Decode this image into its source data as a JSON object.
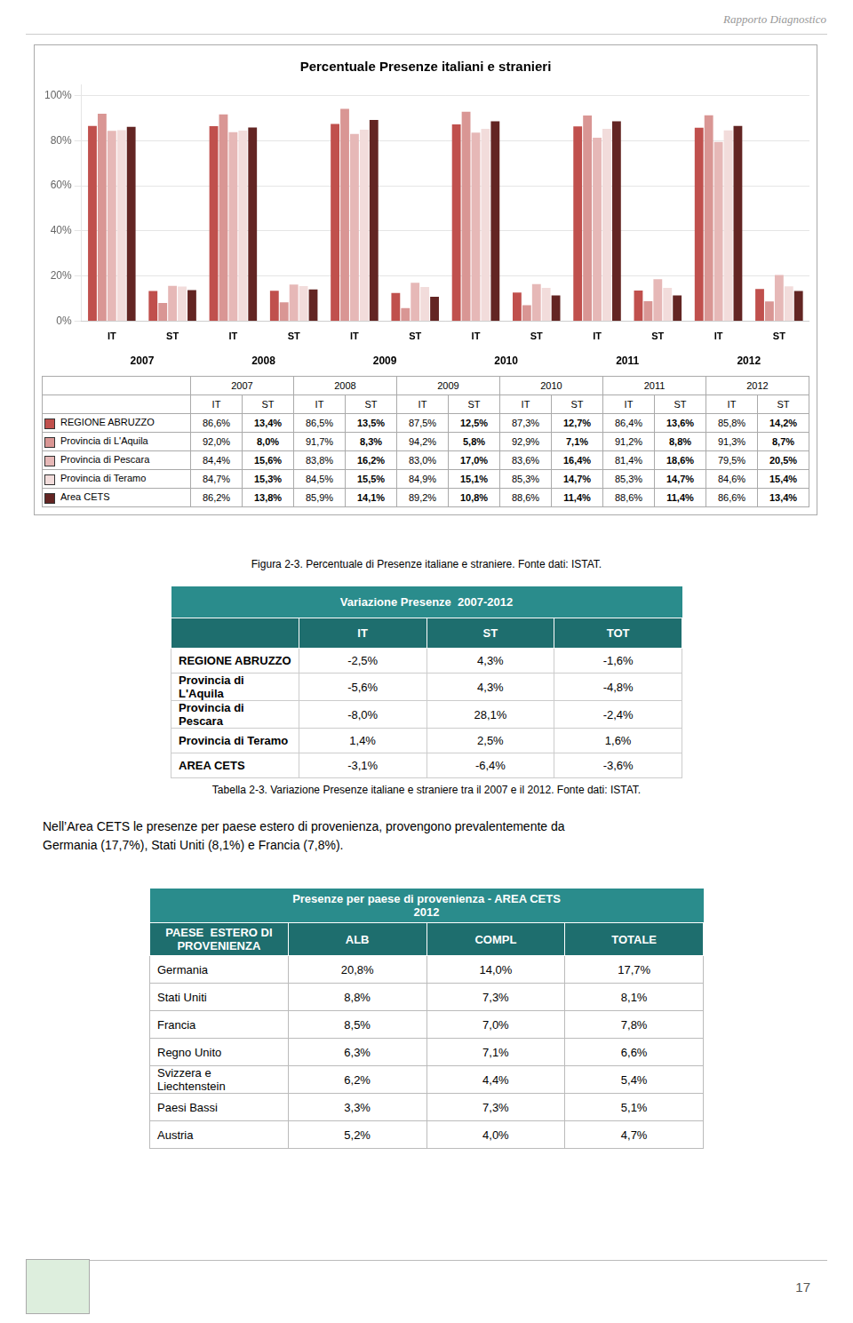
{
  "chart_data": {
    "type": "bar",
    "title": "Percentuale Presenze italiani e stranieri",
    "categories": [
      "IT",
      "ST",
      "IT",
      "ST",
      "IT",
      "ST",
      "IT",
      "ST",
      "IT",
      "ST",
      "IT",
      "ST"
    ],
    "groups": [
      "2007",
      "2008",
      "2009",
      "2010",
      "2011",
      "2012"
    ],
    "series": [
      {
        "name": "REGIONE ABRUZZO",
        "color": "#c0504d",
        "values": [
          86.6,
          13.4,
          86.5,
          13.5,
          87.5,
          12.5,
          87.3,
          12.7,
          86.4,
          13.6,
          85.8,
          14.2
        ]
      },
      {
        "name": "Provincia di L'Aquila",
        "color": "#d99694",
        "values": [
          92.0,
          8.0,
          91.7,
          8.3,
          94.2,
          5.8,
          92.9,
          7.1,
          91.2,
          8.8,
          91.3,
          8.7
        ]
      },
      {
        "name": "Provincia di Pescara",
        "color": "#e6b8b7",
        "values": [
          84.4,
          15.6,
          83.8,
          16.2,
          83.0,
          17.0,
          83.6,
          16.4,
          81.4,
          18.6,
          79.5,
          20.5
        ]
      },
      {
        "name": "Provincia di Teramo",
        "color": "#f2dcdb",
        "values": [
          84.7,
          15.3,
          84.5,
          15.5,
          84.9,
          15.1,
          85.3,
          14.7,
          85.3,
          14.7,
          84.6,
          15.4
        ]
      },
      {
        "name": "Area CETS",
        "color": "#632523",
        "values": [
          86.2,
          13.8,
          85.9,
          14.1,
          89.2,
          10.8,
          88.6,
          11.4,
          88.6,
          11.4,
          86.6,
          13.4
        ]
      }
    ],
    "ylim": [
      0,
      105
    ],
    "yticks": [
      {
        "value": 0,
        "label": "0%"
      },
      {
        "value": 20,
        "label": "20%"
      },
      {
        "value": 40,
        "label": "40%"
      },
      {
        "value": 60,
        "label": "60%"
      },
      {
        "value": 80,
        "label": "80%"
      },
      {
        "value": 100,
        "label": "100%"
      }
    ],
    "grid": true,
    "legend_table": {
      "rows": [
        [
          "86,6%",
          "13,4%",
          "86,5%",
          "13,5%",
          "87,5%",
          "12,5%",
          "87,3%",
          "12,7%",
          "86,4%",
          "13,6%",
          "85,8%",
          "14,2%"
        ],
        [
          "92,0%",
          "8,0%",
          "91,7%",
          "8,3%",
          "94,2%",
          "5,8%",
          "92,9%",
          "7,1%",
          "91,2%",
          "8,8%",
          "91,3%",
          "8,7%"
        ],
        [
          "84,4%",
          "15,6%",
          "83,8%",
          "16,2%",
          "83,0%",
          "17,0%",
          "83,6%",
          "16,4%",
          "81,4%",
          "18,6%",
          "79,5%",
          "20,5%"
        ],
        [
          "84,7%",
          "15,3%",
          "84,5%",
          "15,5%",
          "84,9%",
          "15,1%",
          "85,3%",
          "14,7%",
          "85,3%",
          "14,7%",
          "84,6%",
          "15,4%"
        ],
        [
          "86,2%",
          "13,8%",
          "85,9%",
          "14,1%",
          "89,2%",
          "10,8%",
          "88,6%",
          "11,4%",
          "88,6%",
          "11,4%",
          "86,6%",
          "13,4%"
        ]
      ]
    }
  },
  "header_text": "Rapporto Diagnostico",
  "figure_caption": "Figura 2-3. Percentuale di Presenze italiane e straniere. Fonte dati: ISTAT.",
  "paragraph": "Nell’Area CETS le presenze per paese estero di provenienza, provengono prevalentemente da\nGermania (17,7%), Stati Uniti (8,1%) e Francia (7,8%).",
  "page_number": "17",
  "tables": [
    {
      "title": "Variazione Presenze  2007-2012",
      "header": [
        null,
        "IT",
        "ST",
        "TOT"
      ],
      "rows": [
        [
          "REGIONE ABRUZZO",
          "-2,5%",
          "4,3%",
          "-1,6%"
        ],
        [
          "Provincia di L'Aquila",
          "-5,6%",
          "4,3%",
          "-4,8%"
        ],
        [
          "Provincia di Pescara",
          "-8,0%",
          "28,1%",
          "-2,4%"
        ],
        [
          "Provincia di Teramo",
          "1,4%",
          "2,5%",
          "1,6%"
        ],
        [
          "AREA CETS",
          "-3,1%",
          "-6,4%",
          "-3,6%"
        ]
      ],
      "caption": "Tabella 2-3. Variazione Presenze italiane e straniere tra il 2007 e il 2012. Fonte dati: ISTAT."
    },
    {
      "title": "Presenze per paese di provenienza - AREA CETS\n2012",
      "header": [
        "PAESE  ESTERO DI\nPROVENIENZA",
        "ALB",
        "COMPL",
        "TOTALE"
      ],
      "rows": [
        [
          "Germania",
          "20,8%",
          "14,0%",
          "17,7%"
        ],
        [
          "Stati Uniti",
          "8,8%",
          "7,3%",
          "8,1%"
        ],
        [
          "Francia",
          "8,5%",
          "7,0%",
          "7,8%"
        ],
        [
          "Regno Unito",
          "6,3%",
          "7,1%",
          "6,6%"
        ],
        [
          "Svizzera e Liechtenstein",
          "6,2%",
          "4,4%",
          "5,4%"
        ],
        [
          "Paesi Bassi",
          "3,3%",
          "7,3%",
          "5,1%"
        ],
        [
          "Austria",
          "5,2%",
          "4,0%",
          "4,7%"
        ]
      ]
    }
  ]
}
